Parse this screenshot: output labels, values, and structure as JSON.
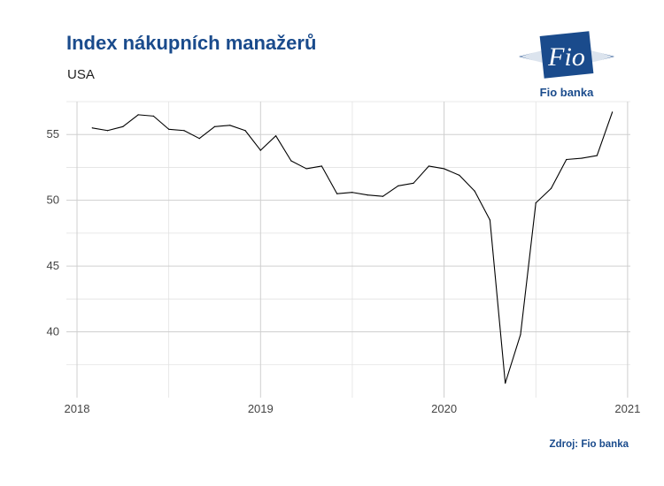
{
  "header": {
    "title": "Index nákupních manažerů",
    "subtitle": "USA"
  },
  "logo": {
    "mark_text": "Fio",
    "caption": "Fio banka",
    "color": "#1a4b8c"
  },
  "footer": {
    "source": "Zdroj: Fio banka"
  },
  "chart_data": {
    "type": "line",
    "title": "Index nákupních manažerů",
    "subtitle": "USA",
    "xlabel": "",
    "ylabel": "",
    "x_ticks": [
      "2018",
      "2019",
      "2020",
      "2021"
    ],
    "y_ticks": [
      40,
      45,
      50,
      55
    ],
    "ylim": [
      35,
      57.5
    ],
    "xlim": [
      "2018-01",
      "2021-01"
    ],
    "grid": true,
    "line_color": "#000000",
    "series": [
      {
        "x": [
          "2018-02",
          "2018-03",
          "2018-04",
          "2018-05",
          "2018-06",
          "2018-07",
          "2018-08",
          "2018-09",
          "2018-10",
          "2018-11",
          "2018-12",
          "2019-01",
          "2019-02",
          "2019-03",
          "2019-04",
          "2019-05",
          "2019-06",
          "2019-07",
          "2019-08",
          "2019-09",
          "2019-10",
          "2019-11",
          "2019-12",
          "2020-01",
          "2020-02",
          "2020-03",
          "2020-04",
          "2020-05",
          "2020-06",
          "2020-07",
          "2020-08",
          "2020-09",
          "2020-10",
          "2020-11",
          "2020-12"
        ],
        "values": [
          55.5,
          55.3,
          55.6,
          56.5,
          56.4,
          55.4,
          55.3,
          54.7,
          55.6,
          55.7,
          55.3,
          53.8,
          54.9,
          53.0,
          52.4,
          52.6,
          50.5,
          50.6,
          50.4,
          50.3,
          51.1,
          51.3,
          52.6,
          52.4,
          51.9,
          50.7,
          48.5,
          36.1,
          39.8,
          49.8,
          50.9,
          53.1,
          53.2,
          53.4,
          56.7
        ]
      }
    ]
  }
}
